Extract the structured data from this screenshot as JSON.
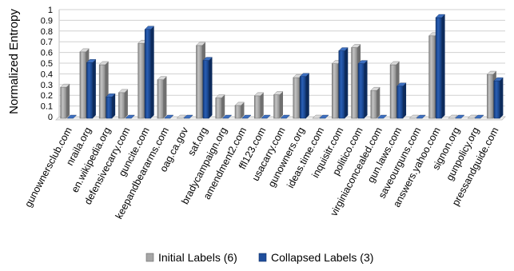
{
  "chart_data": {
    "type": "bar",
    "ylabel": "Normalized Entropy",
    "ylim": [
      0,
      1
    ],
    "yticks": [
      "0",
      "0.1",
      "0.2",
      "0.3",
      "0.4",
      "0.5",
      "0.6",
      "0.7",
      "0.8",
      "0.9",
      "1"
    ],
    "grid": true,
    "legend_position": "bottom",
    "categories": [
      "gunownersclub.com",
      "nraila.org",
      "en.wikipedia.org",
      "defensivecarry.com",
      "guncite.com",
      "keepandbeararms.com",
      "oag.ca.gov",
      "saf.org",
      "bradycampaign.org",
      "amendment2.com",
      "ffl123.com",
      "usacarry.com",
      "gunowners.org",
      "ideas.time.com",
      "inquisitr.com",
      "politico.com",
      "virginiaconcealed.com",
      "gun.laws.com",
      "saveourguns.com",
      "answers.yahoo.com",
      "signon.org",
      "gunpolicy.org",
      "pressandguide.com"
    ],
    "series": [
      {
        "name": "Initial Labels (6)",
        "color": "#a6a6a6",
        "values": [
          0.29,
          0.62,
          0.5,
          0.24,
          0.7,
          0.36,
          0.0,
          0.68,
          0.19,
          0.12,
          0.21,
          0.22,
          0.38,
          0.0,
          0.51,
          0.66,
          0.26,
          0.5,
          0.0,
          0.77,
          0.0,
          0.0,
          0.41
        ]
      },
      {
        "name": "Collapsed Labels (3)",
        "color": "#1f4e9c",
        "values": [
          0.0,
          0.52,
          0.2,
          0.0,
          0.83,
          0.0,
          0.0,
          0.54,
          0.0,
          0.0,
          0.0,
          0.0,
          0.39,
          0.0,
          0.63,
          0.51,
          0.0,
          0.3,
          0.0,
          0.94,
          0.0,
          0.0,
          0.35
        ]
      }
    ]
  }
}
